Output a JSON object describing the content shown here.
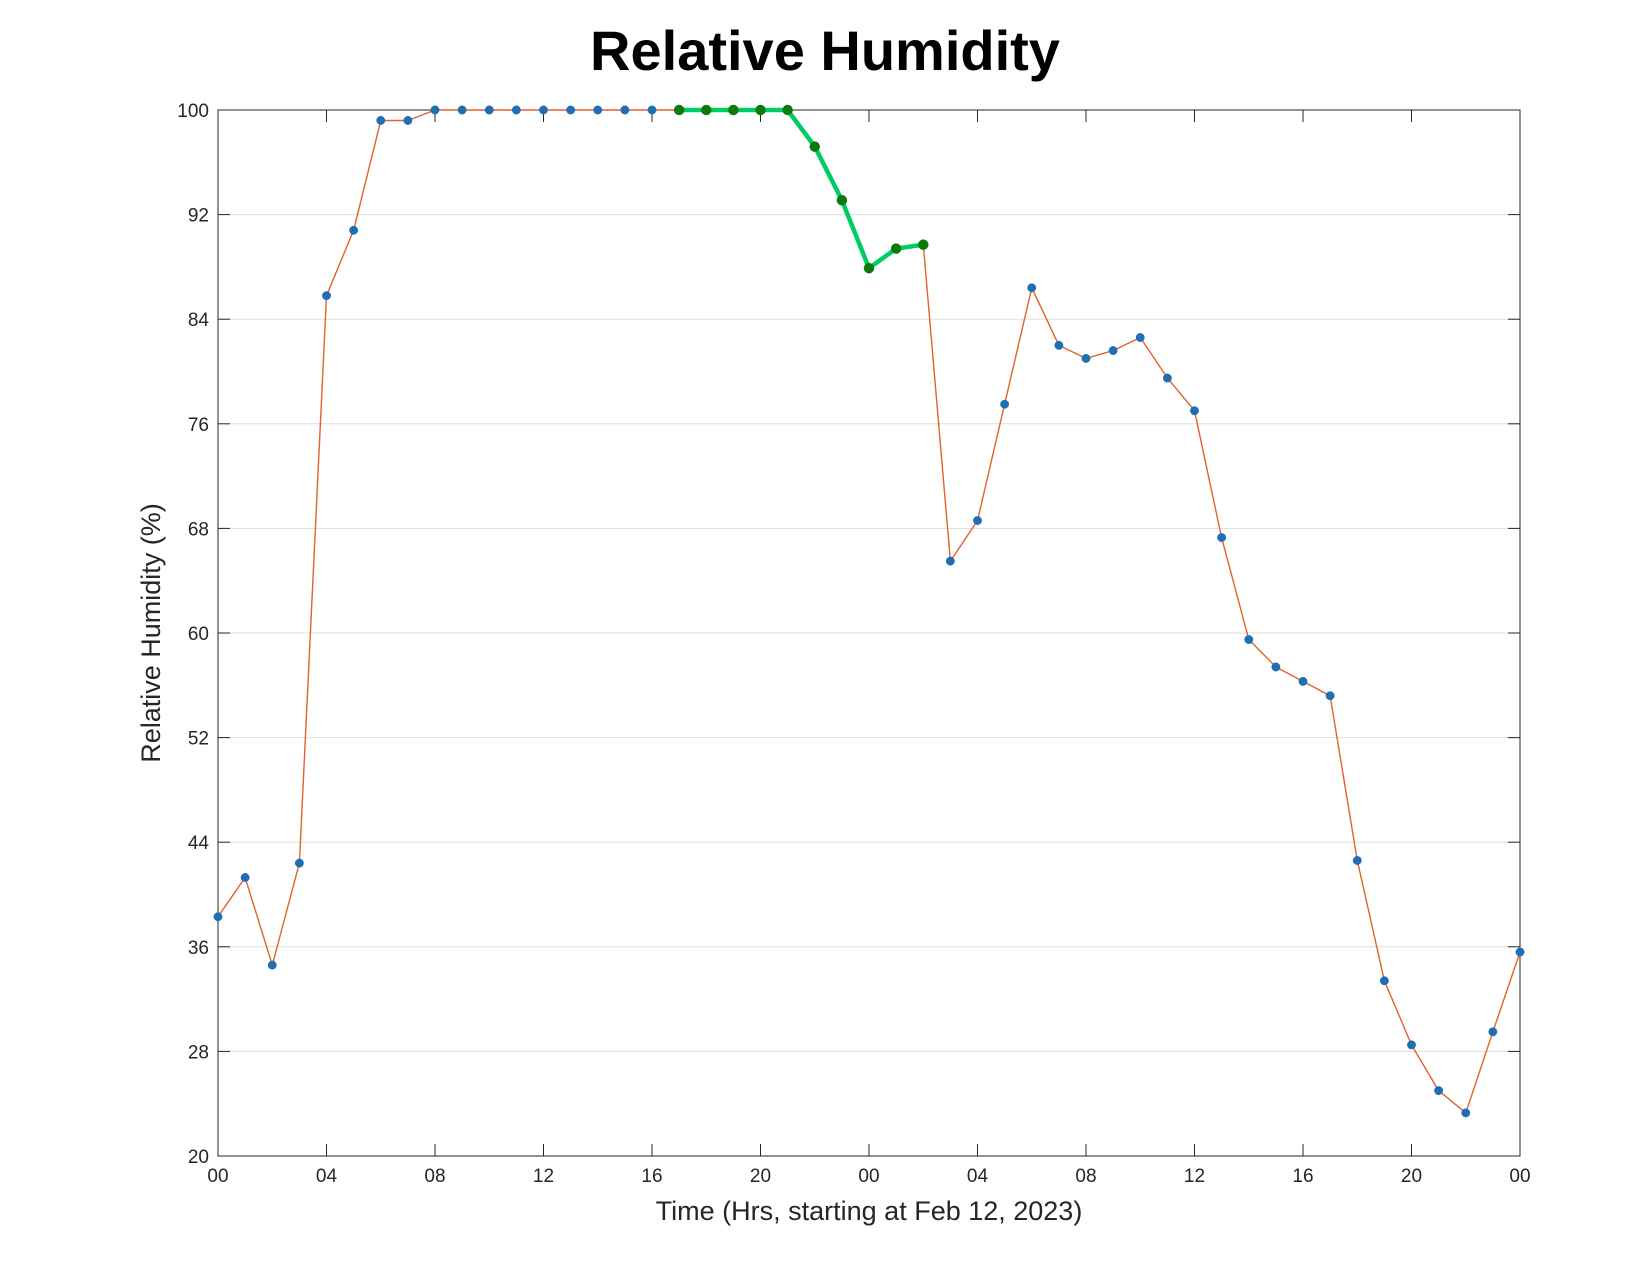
{
  "chart_data": {
    "type": "line",
    "title": "Relative Humidity",
    "xlabel": "Time (Hrs, starting at Feb 12, 2023)",
    "ylabel": "Relative Humidity (%)",
    "ylim": [
      20,
      100
    ],
    "yticks": [
      20,
      28,
      36,
      44,
      52,
      60,
      68,
      76,
      84,
      92,
      100
    ],
    "xlim": [
      0,
      48
    ],
    "xticks": [
      {
        "x": 0,
        "label": "00"
      },
      {
        "x": 4,
        "label": "04"
      },
      {
        "x": 8,
        "label": "08"
      },
      {
        "x": 12,
        "label": "12"
      },
      {
        "x": 16,
        "label": "16"
      },
      {
        "x": 20,
        "label": "20"
      },
      {
        "x": 24,
        "label": "00"
      },
      {
        "x": 28,
        "label": "04"
      },
      {
        "x": 32,
        "label": "08"
      },
      {
        "x": 36,
        "label": "12"
      },
      {
        "x": 40,
        "label": "16"
      },
      {
        "x": 44,
        "label": "20"
      },
      {
        "x": 48,
        "label": "00"
      }
    ],
    "grid": "horizontal",
    "series": [
      {
        "x": [
          0,
          1,
          2,
          3,
          4,
          5,
          6,
          7,
          8,
          9,
          10,
          11,
          12,
          13,
          14,
          15,
          16,
          17,
          18,
          19,
          20,
          21,
          22,
          23,
          24,
          25,
          26,
          27,
          28,
          29,
          30,
          31,
          32,
          33,
          34,
          35,
          36,
          37,
          38,
          39,
          40,
          41,
          42,
          43,
          44,
          45,
          46,
          47,
          48
        ],
        "values": [
          38.3,
          41.3,
          34.6,
          42.4,
          85.8,
          90.8,
          99.2,
          99.2,
          100,
          100,
          100,
          100,
          100,
          100,
          100,
          100,
          100,
          100,
          100,
          100,
          100,
          100,
          97.2,
          93.1,
          87.9,
          89.4,
          89.7,
          65.5,
          68.6,
          77.5,
          86.4,
          82.0,
          81.0,
          81.6,
          82.6,
          79.5,
          77.0,
          67.3,
          59.5,
          57.4,
          56.3,
          55.2,
          42.6,
          33.4,
          28.5,
          25.0,
          23.3,
          29.5,
          35.6
        ],
        "color": "#e2622d",
        "marker_color": "#1f6fb5"
      },
      {
        "x": [
          17,
          18,
          19,
          20,
          21,
          22,
          23,
          24,
          25,
          26
        ],
        "values": [
          100,
          100,
          100,
          100,
          100,
          97.2,
          93.1,
          87.9,
          89.4,
          89.7
        ],
        "color": "#00cc66",
        "marker_color": "#0a7a0a"
      }
    ]
  }
}
